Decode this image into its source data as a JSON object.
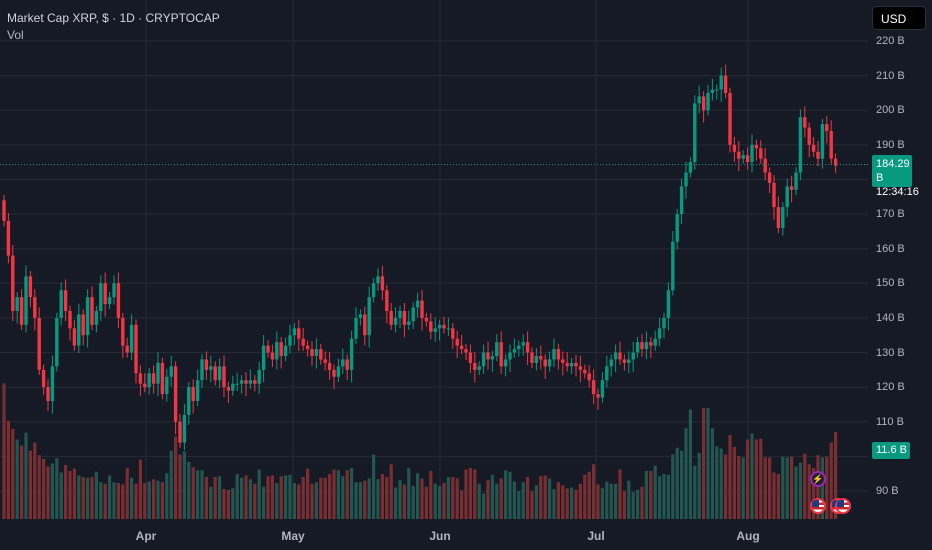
{
  "header": {
    "title": "Market Cap XRP, $ · 1D · CRYPTOCAP",
    "indicator": "Vol"
  },
  "currency": "USD",
  "last_price": {
    "value": "184.29 B",
    "countdown": "12:34:16"
  },
  "last_volume": "11.6 B",
  "colors": {
    "up": "#089981",
    "down": "#f23645",
    "vol_up": "#22564f",
    "vol_down": "#7a2e32",
    "background": "#161a25",
    "grid": "#262a36"
  },
  "icons": [
    "lightning-event-icon",
    "us-flag-event-icon"
  ],
  "chart_data": {
    "type": "candlestick",
    "title": "Market Cap XRP, $ · 1D · CRYPTOCAP",
    "x_tick_labels": [
      "Apr",
      "May",
      "Jun",
      "Jul",
      "Aug"
    ],
    "y_tick_labels": [
      "220 B",
      "210 B",
      "200 B",
      "190 B",
      "180 B",
      "170 B",
      "160 B",
      "150 B",
      "140 B",
      "130 B",
      "120 B",
      "110 B",
      "100 B",
      "90 B"
    ],
    "ylim": [
      85,
      222
    ],
    "grid": true,
    "x_days": "2025-03-12 to 2025-08-16",
    "close": [
      168,
      158,
      142,
      146,
      138,
      152,
      146,
      140,
      125,
      120,
      116,
      126,
      140,
      148,
      142,
      137,
      132,
      141,
      135,
      146,
      138,
      142,
      150,
      144,
      146,
      150,
      140,
      132,
      130,
      138,
      124,
      121,
      120,
      124,
      121,
      127,
      118,
      123,
      126,
      110,
      104,
      112,
      120,
      116,
      122,
      128,
      125,
      126,
      122,
      126,
      120,
      119,
      121,
      121,
      122,
      121,
      122,
      121,
      125,
      132,
      130,
      128,
      133,
      129,
      132,
      135,
      137,
      134,
      132,
      131,
      129,
      131,
      128,
      127,
      125,
      123,
      126,
      128,
      125,
      134,
      140,
      141,
      135,
      146,
      150,
      152,
      148,
      142,
      138,
      140,
      142,
      138,
      139,
      143,
      145,
      140,
      139,
      136,
      137,
      138,
      137,
      137,
      134,
      132,
      131,
      130,
      127,
      125,
      126,
      130,
      128,
      129,
      133,
      126,
      128,
      130,
      131,
      132,
      133,
      130,
      127,
      129,
      128,
      126,
      128,
      131,
      128,
      127,
      126,
      127,
      126,
      125,
      124,
      122,
      118,
      117,
      122,
      126,
      128,
      130,
      128,
      127,
      128,
      130,
      133,
      131,
      133,
      132,
      134,
      137,
      140,
      148,
      162,
      170,
      178,
      182,
      185,
      202,
      204,
      200,
      205,
      206,
      206,
      210,
      205,
      190,
      188,
      186,
      187,
      185,
      190,
      189,
      186,
      182,
      179,
      172,
      166,
      172,
      178,
      177,
      182,
      198,
      195,
      190,
      188,
      186,
      196,
      194,
      186,
      184
    ],
    "volume_billions": [
      18.1,
      13.1,
      12.0,
      10.6,
      9.8,
      11.5,
      9.1,
      10.2,
      8.5,
      8.0,
      7.0,
      7.4,
      8.1,
      6.2,
      7.2,
      6.4,
      6.7,
      5.8,
      5.6,
      5.5,
      5.6,
      6.3,
      4.9,
      4.7,
      5.8,
      4.9,
      4.8,
      4.6,
      6.8,
      5.5,
      4.7,
      7.9,
      4.8,
      5.0,
      5.3,
      5.1,
      4.9,
      6.1,
      9.1,
      11.0,
      8.6,
      9.0,
      7.6,
      6.9,
      6.5,
      6.5,
      5.6,
      4.3,
      5.6,
      5.7,
      4.0,
      3.9,
      4.1,
      6.0,
      5.5,
      5.8,
      5.3,
      4.7,
      6.6,
      4.3,
      5.7,
      5.8,
      4.8,
      5.7,
      5.8,
      5.9,
      4.8,
      4.6,
      5.6,
      6.7,
      4.7,
      4.9,
      5.5,
      5.5,
      6.0,
      6.6,
      6.5,
      5.7,
      6.5,
      6.8,
      4.9,
      4.9,
      5.1,
      5.4,
      8.6,
      5.3,
      6.0,
      5.6,
      7.3,
      4.2,
      5.2,
      4.6,
      6.8,
      4.4,
      6.1,
      5.4,
      4.3,
      6.4,
      4.7,
      4.4,
      4.8,
      5.6,
      5.6,
      5.4,
      3.8,
      6.6,
      6.8,
      6.6,
      4.7,
      3.4,
      5.2,
      5.9,
      4.7,
      5.4,
      6.5,
      6.3,
      5.0,
      3.7,
      4.9,
      5.6,
      3.7,
      4.5,
      5.7,
      5.8,
      5.4,
      4.0,
      4.9,
      4.5,
      4.1,
      4.2,
      3.9,
      4.7,
      5.9,
      6.3,
      7.3,
      4.6,
      4.1,
      5.0,
      4.7,
      4.7,
      6.6,
      3.7,
      5.1,
      3.6,
      3.9,
      4.3,
      6.4,
      6.4,
      7.1,
      5.7,
      6.0,
      5.9,
      8.6,
      9.5,
      9.1,
      12.1,
      14.6,
      7.1,
      8.8,
      14.8,
      14.8,
      12.1,
      9.7,
      9.4,
      8.6,
      11.2,
      9.6,
      8.4,
      8.2,
      10.6,
      11.4,
      10.6,
      10.7,
      8.2,
      8.2,
      6.2,
      6.0,
      8.3,
      8.2,
      8.3,
      7.0,
      7.5,
      8.7,
      7.3,
      6.8,
      8.5,
      8.2,
      8.3,
      10.2,
      11.6
    ]
  }
}
